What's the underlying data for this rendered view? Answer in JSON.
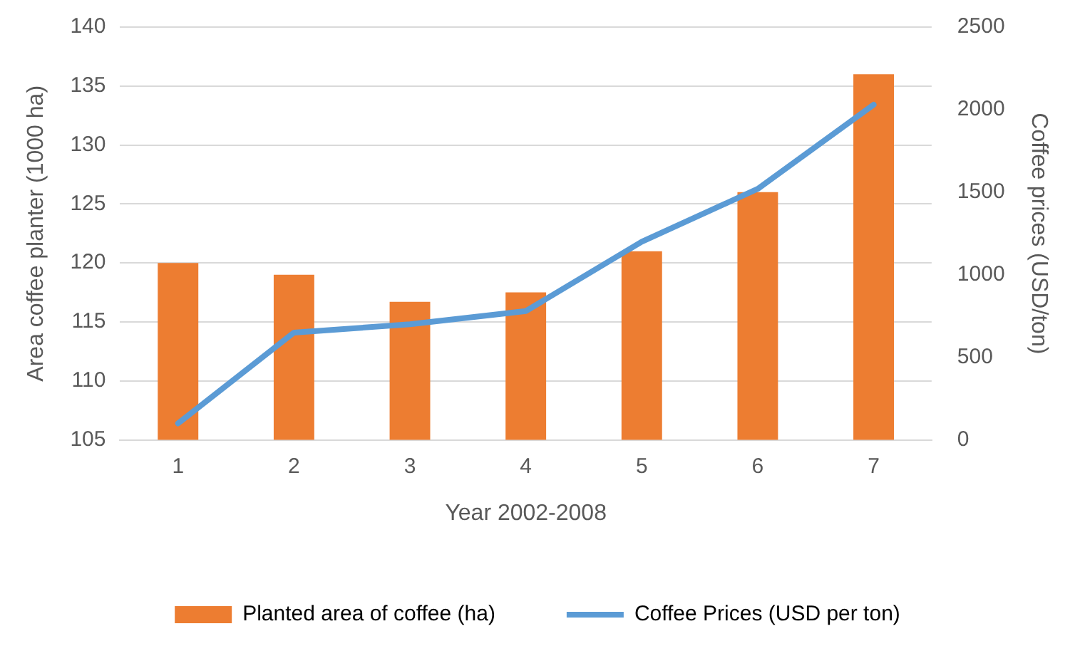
{
  "chart_data": {
    "type": "bar",
    "xlabel": "Year 2002-2008",
    "ylabel": "Area coffee planter (1000 ha)",
    "y2label": "Coffee prices (USD/ton)",
    "categories": [
      "1",
      "2",
      "3",
      "4",
      "5",
      "6",
      "7"
    ],
    "series": [
      {
        "name": "Planted area of coffee (ha)",
        "color": "#ed7d31",
        "values": [
          120,
          119,
          116.7,
          117.5,
          121,
          126,
          136
        ]
      },
      {
        "name": "Coffee Prices (USD per ton)",
        "type": "line",
        "axis": "y2",
        "color": "#5b9bd5",
        "marker": "none",
        "values": [
          100,
          650,
          700,
          780,
          1200,
          1520,
          2030
        ]
      }
    ],
    "ylim": [
      105,
      140
    ],
    "yticks": [
      105,
      110,
      115,
      120,
      125,
      130,
      135,
      140
    ],
    "y2lim": [
      0,
      2500
    ],
    "y2ticks": [
      0,
      500,
      1000,
      1500,
      2000,
      2500
    ],
    "grid": "y",
    "legend": "bottom"
  }
}
